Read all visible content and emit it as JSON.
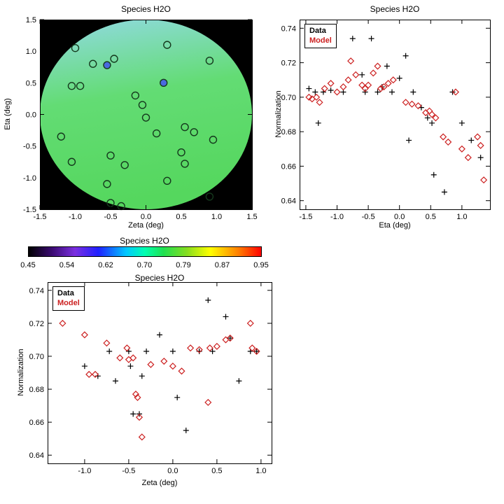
{
  "figure": {
    "background": "#ffffff",
    "text_color": "#000000",
    "data_color": "#000000",
    "model_color": "#cc2020"
  },
  "chart_data": [
    {
      "name": "spatial-map",
      "type": "heatmap",
      "title": "Species H2O",
      "xlabel": "Zeta (deg)",
      "ylabel": "Eta (deg)",
      "xlim": [
        -1.5,
        1.5
      ],
      "ylim": [
        -1.5,
        1.5
      ],
      "xticks": [
        -1.5,
        -1.0,
        -0.5,
        0.0,
        0.5,
        1.0,
        1.5
      ],
      "xtick_labels": [
        "-1.5",
        "-1.0",
        "-0.5",
        "0.0",
        "0.5",
        "1.0",
        "1.5"
      ],
      "yticks": [
        -1.5,
        -1.0,
        -0.5,
        0.0,
        0.5,
        1.0,
        1.5
      ],
      "ytick_labels": [
        "-1.5",
        "-1.0",
        "-0.5",
        "0.0",
        "0.5",
        "1.0",
        "1.5"
      ],
      "background": "#000000",
      "disk": {
        "center": [
          0.0,
          0.0
        ],
        "radius": 1.5,
        "gradient": [
          {
            "offset": 0,
            "color": "#92dae4"
          },
          {
            "offset": 0.45,
            "color": "#63dc74"
          },
          {
            "offset": 1,
            "color": "#55d75e"
          }
        ]
      },
      "marker_outline_color": "#15391d",
      "highlight_fill_color": "#4a6adf",
      "aperture_markers": [
        [
          -1.0,
          1.05
        ],
        [
          -0.75,
          0.8
        ],
        [
          -0.45,
          0.88
        ],
        [
          0.3,
          1.1
        ],
        [
          0.9,
          0.85
        ],
        [
          -1.05,
          0.45
        ],
        [
          -0.93,
          0.45
        ],
        [
          -0.15,
          0.3
        ],
        [
          -0.05,
          0.15
        ],
        [
          0.0,
          -0.05
        ],
        [
          0.15,
          -0.3
        ],
        [
          -1.2,
          -0.35
        ],
        [
          0.55,
          -0.2
        ],
        [
          0.68,
          -0.28
        ],
        [
          0.95,
          -0.4
        ],
        [
          -1.05,
          -0.75
        ],
        [
          -0.5,
          -0.65
        ],
        [
          -0.3,
          -0.8
        ],
        [
          0.5,
          -0.6
        ],
        [
          0.55,
          -0.78
        ],
        [
          -0.55,
          -1.1
        ],
        [
          0.3,
          -1.05
        ],
        [
          -0.5,
          -1.4
        ],
        [
          -0.35,
          -1.45
        ],
        [
          0.9,
          -1.3
        ]
      ],
      "highlight_markers": [
        [
          -0.55,
          0.78
        ],
        [
          0.25,
          0.5
        ]
      ]
    },
    {
      "name": "normalization-vs-eta",
      "type": "scatter",
      "title": "Species H2O",
      "xlabel": "Eta (deg)",
      "ylabel": "Normalization",
      "xlim": [
        -1.6,
        1.45
      ],
      "ylim": [
        0.635,
        0.745
      ],
      "xticks": [
        -1.5,
        -1.0,
        -0.5,
        0.0,
        0.5,
        1.0
      ],
      "xtick_labels": [
        "-1.5",
        "-1.0",
        "-0.5",
        "0.0",
        "0.5",
        "1.0"
      ],
      "yticks": [
        0.64,
        0.66,
        0.68,
        0.7,
        0.72,
        0.74
      ],
      "ytick_labels": [
        "0.64",
        "0.66",
        "0.68",
        "0.70",
        "0.72",
        "0.74"
      ],
      "legend": {
        "position": "top-left",
        "entries": [
          {
            "label": "Data",
            "color": "#000000",
            "marker": "plus"
          },
          {
            "label": "Model",
            "color": "#cc2020",
            "marker": "diamond"
          }
        ]
      },
      "series": [
        {
          "name": "Data",
          "marker": "plus",
          "color": "#000000",
          "points": [
            [
              -1.45,
              0.705
            ],
            [
              -1.35,
              0.703
            ],
            [
              -1.3,
              0.685
            ],
            [
              -1.22,
              0.703
            ],
            [
              -1.1,
              0.704
            ],
            [
              -0.9,
              0.703
            ],
            [
              -0.75,
              0.734
            ],
            [
              -0.6,
              0.713
            ],
            [
              -0.55,
              0.703
            ],
            [
              -0.45,
              0.734
            ],
            [
              -0.35,
              0.703
            ],
            [
              -0.28,
              0.706
            ],
            [
              -0.2,
              0.718
            ],
            [
              -0.12,
              0.703
            ],
            [
              0.0,
              0.711
            ],
            [
              0.1,
              0.724
            ],
            [
              0.15,
              0.675
            ],
            [
              0.22,
              0.703
            ],
            [
              0.35,
              0.694
            ],
            [
              0.45,
              0.688
            ],
            [
              0.52,
              0.685
            ],
            [
              0.55,
              0.655
            ],
            [
              0.72,
              0.645
            ],
            [
              0.85,
              0.703
            ],
            [
              1.0,
              0.685
            ],
            [
              1.15,
              0.675
            ],
            [
              1.3,
              0.665
            ]
          ]
        },
        {
          "name": "Model",
          "marker": "diamond",
          "color": "#cc2020",
          "points": [
            [
              -1.45,
              0.7
            ],
            [
              -1.4,
              0.699
            ],
            [
              -1.33,
              0.7
            ],
            [
              -1.28,
              0.697
            ],
            [
              -1.2,
              0.705
            ],
            [
              -1.1,
              0.708
            ],
            [
              -1.0,
              0.703
            ],
            [
              -0.9,
              0.706
            ],
            [
              -0.82,
              0.71
            ],
            [
              -0.78,
              0.721
            ],
            [
              -0.7,
              0.713
            ],
            [
              -0.6,
              0.707
            ],
            [
              -0.55,
              0.705
            ],
            [
              -0.5,
              0.707
            ],
            [
              -0.42,
              0.714
            ],
            [
              -0.35,
              0.718
            ],
            [
              -0.3,
              0.705
            ],
            [
              -0.25,
              0.706
            ],
            [
              -0.18,
              0.708
            ],
            [
              -0.1,
              0.71
            ],
            [
              0.1,
              0.697
            ],
            [
              0.2,
              0.696
            ],
            [
              0.3,
              0.695
            ],
            [
              0.42,
              0.691
            ],
            [
              0.48,
              0.692
            ],
            [
              0.52,
              0.69
            ],
            [
              0.58,
              0.688
            ],
            [
              0.7,
              0.677
            ],
            [
              0.78,
              0.674
            ],
            [
              0.9,
              0.703
            ],
            [
              1.0,
              0.67
            ],
            [
              1.1,
              0.665
            ],
            [
              1.25,
              0.677
            ],
            [
              1.3,
              0.672
            ],
            [
              1.35,
              0.652
            ]
          ]
        }
      ]
    },
    {
      "name": "colorbar",
      "type": "colorbar",
      "title": "Species H2O",
      "tick_labels": [
        "0.45",
        "0.54",
        "0.62",
        "0.70",
        "0.79",
        "0.87",
        "0.95"
      ],
      "value_range": [
        0.45,
        0.95
      ],
      "gradient": [
        {
          "offset": 0,
          "color": "#000000"
        },
        {
          "offset": 0.1,
          "color": "#3a0a70"
        },
        {
          "offset": 0.2,
          "color": "#7b2fe0"
        },
        {
          "offset": 0.3,
          "color": "#2020ff"
        },
        {
          "offset": 0.42,
          "color": "#00c8ff"
        },
        {
          "offset": 0.5,
          "color": "#00ffb0"
        },
        {
          "offset": 0.58,
          "color": "#20e050"
        },
        {
          "offset": 0.68,
          "color": "#86dd20"
        },
        {
          "offset": 0.78,
          "color": "#ffff00"
        },
        {
          "offset": 0.9,
          "color": "#ff8000"
        },
        {
          "offset": 1,
          "color": "#ff0000"
        }
      ]
    },
    {
      "name": "normalization-vs-zeta",
      "type": "scatter",
      "title": "Species H2O",
      "xlabel": "Zeta (deg)",
      "ylabel": "Normalization",
      "xlim": [
        -1.42,
        1.12
      ],
      "ylim": [
        0.635,
        0.745
      ],
      "xticks": [
        -1.0,
        -0.5,
        0.0,
        0.5,
        1.0
      ],
      "xtick_labels": [
        "-1.0",
        "-0.5",
        "0.0",
        "0.5",
        "1.0"
      ],
      "yticks": [
        0.64,
        0.66,
        0.68,
        0.7,
        0.72,
        0.74
      ],
      "ytick_labels": [
        "0.64",
        "0.66",
        "0.68",
        "0.70",
        "0.72",
        "0.74"
      ],
      "legend": {
        "position": "top-left",
        "entries": [
          {
            "label": "Data",
            "color": "#000000",
            "marker": "plus"
          },
          {
            "label": "Model",
            "color": "#cc2020",
            "marker": "diamond"
          }
        ]
      },
      "series": [
        {
          "name": "Data",
          "marker": "plus",
          "color": "#000000",
          "points": [
            [
              -1.05,
              0.734
            ],
            [
              -1.0,
              0.694
            ],
            [
              -0.85,
              0.688
            ],
            [
              -0.72,
              0.703
            ],
            [
              -0.65,
              0.685
            ],
            [
              -0.5,
              0.703
            ],
            [
              -0.48,
              0.694
            ],
            [
              -0.45,
              0.665
            ],
            [
              -0.38,
              0.665
            ],
            [
              -0.35,
              0.688
            ],
            [
              -0.3,
              0.703
            ],
            [
              -0.15,
              0.713
            ],
            [
              0.0,
              0.703
            ],
            [
              0.05,
              0.675
            ],
            [
              0.15,
              0.655
            ],
            [
              0.3,
              0.703
            ],
            [
              0.4,
              0.734
            ],
            [
              0.45,
              0.703
            ],
            [
              0.6,
              0.724
            ],
            [
              0.65,
              0.711
            ],
            [
              0.75,
              0.685
            ],
            [
              0.88,
              0.703
            ],
            [
              0.95,
              0.703
            ]
          ]
        },
        {
          "name": "Model",
          "marker": "diamond",
          "color": "#cc2020",
          "points": [
            [
              -1.25,
              0.72
            ],
            [
              -1.0,
              0.713
            ],
            [
              -0.95,
              0.689
            ],
            [
              -0.88,
              0.689
            ],
            [
              -0.75,
              0.708
            ],
            [
              -0.6,
              0.699
            ],
            [
              -0.52,
              0.705
            ],
            [
              -0.5,
              0.698
            ],
            [
              -0.45,
              0.699
            ],
            [
              -0.42,
              0.677
            ],
            [
              -0.4,
              0.675
            ],
            [
              -0.38,
              0.663
            ],
            [
              -0.35,
              0.651
            ],
            [
              -0.25,
              0.695
            ],
            [
              -0.1,
              0.697
            ],
            [
              0.0,
              0.694
            ],
            [
              0.1,
              0.691
            ],
            [
              0.2,
              0.705
            ],
            [
              0.3,
              0.704
            ],
            [
              0.4,
              0.672
            ],
            [
              0.42,
              0.705
            ],
            [
              0.5,
              0.706
            ],
            [
              0.6,
              0.71
            ],
            [
              0.65,
              0.711
            ],
            [
              0.88,
              0.72
            ],
            [
              0.9,
              0.705
            ],
            [
              0.95,
              0.703
            ]
          ]
        }
      ]
    }
  ]
}
